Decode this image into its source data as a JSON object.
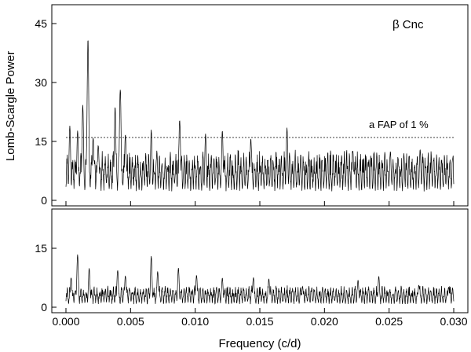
{
  "chart_data": [
    {
      "type": "line",
      "panel": "top",
      "star_label": "β Cnc",
      "ylabel": "Lomb-Scargle Power",
      "xlabel": "",
      "xlim": [
        0.0,
        0.03
      ],
      "ylim": [
        0,
        48
      ],
      "yticks": [
        0,
        15,
        30,
        45
      ],
      "ytick_labels": [
        "0",
        "15",
        "30",
        "45"
      ],
      "grid": false,
      "threshold": {
        "value": 16,
        "label": "a FAP of  1 %",
        "style": "dashed"
      },
      "peaks": [
        {
          "x": 0.0003,
          "y": 19
        },
        {
          "x": 0.0009,
          "y": 18
        },
        {
          "x": 0.0013,
          "y": 25
        },
        {
          "x": 0.0017,
          "y": 43
        },
        {
          "x": 0.0021,
          "y": 17
        },
        {
          "x": 0.0025,
          "y": 15
        },
        {
          "x": 0.0038,
          "y": 25
        },
        {
          "x": 0.0042,
          "y": 30.5
        },
        {
          "x": 0.0046,
          "y": 18
        },
        {
          "x": 0.0066,
          "y": 18
        },
        {
          "x": 0.0088,
          "y": 22
        },
        {
          "x": 0.0108,
          "y": 17
        },
        {
          "x": 0.0121,
          "y": 18
        },
        {
          "x": 0.0143,
          "y": 16.5
        },
        {
          "x": 0.0171,
          "y": 18.5
        },
        {
          "x": 0.0222,
          "y": 13
        },
        {
          "x": 0.0251,
          "y": 12.5
        },
        {
          "x": 0.0274,
          "y": 13
        }
      ],
      "baseline_mean": 6.5,
      "baseline_amplitude": 4.5
    },
    {
      "type": "line",
      "panel": "bottom",
      "ylabel": "",
      "xlabel": "Frequency (c/d)",
      "xlim": [
        0.0,
        0.03
      ],
      "ylim": [
        0,
        24
      ],
      "yticks": [
        0,
        15
      ],
      "ytick_labels": [
        "0",
        "15"
      ],
      "xticks": [
        0.0,
        0.005,
        0.01,
        0.015,
        0.02,
        0.025,
        0.03
      ],
      "xtick_labels": [
        "0.000",
        "0.005",
        "0.010",
        "0.015",
        "0.020",
        "0.025",
        "0.030"
      ],
      "grid": false,
      "peaks": [
        {
          "x": 0.0004,
          "y": 8
        },
        {
          "x": 0.0009,
          "y": 13.5
        },
        {
          "x": 0.0018,
          "y": 10
        },
        {
          "x": 0.004,
          "y": 10
        },
        {
          "x": 0.0046,
          "y": 8.5
        },
        {
          "x": 0.0066,
          "y": 13
        },
        {
          "x": 0.0071,
          "y": 9.5
        },
        {
          "x": 0.0087,
          "y": 10
        },
        {
          "x": 0.0101,
          "y": 8.5
        },
        {
          "x": 0.0121,
          "y": 7.5
        },
        {
          "x": 0.0145,
          "y": 8
        },
        {
          "x": 0.0157,
          "y": 7.5
        },
        {
          "x": 0.0183,
          "y": 5.5
        },
        {
          "x": 0.0226,
          "y": 7
        },
        {
          "x": 0.0242,
          "y": 8
        },
        {
          "x": 0.0273,
          "y": 6
        },
        {
          "x": 0.0296,
          "y": 5.5
        }
      ],
      "baseline_mean": 2.2,
      "baseline_amplitude": 2.0
    }
  ]
}
